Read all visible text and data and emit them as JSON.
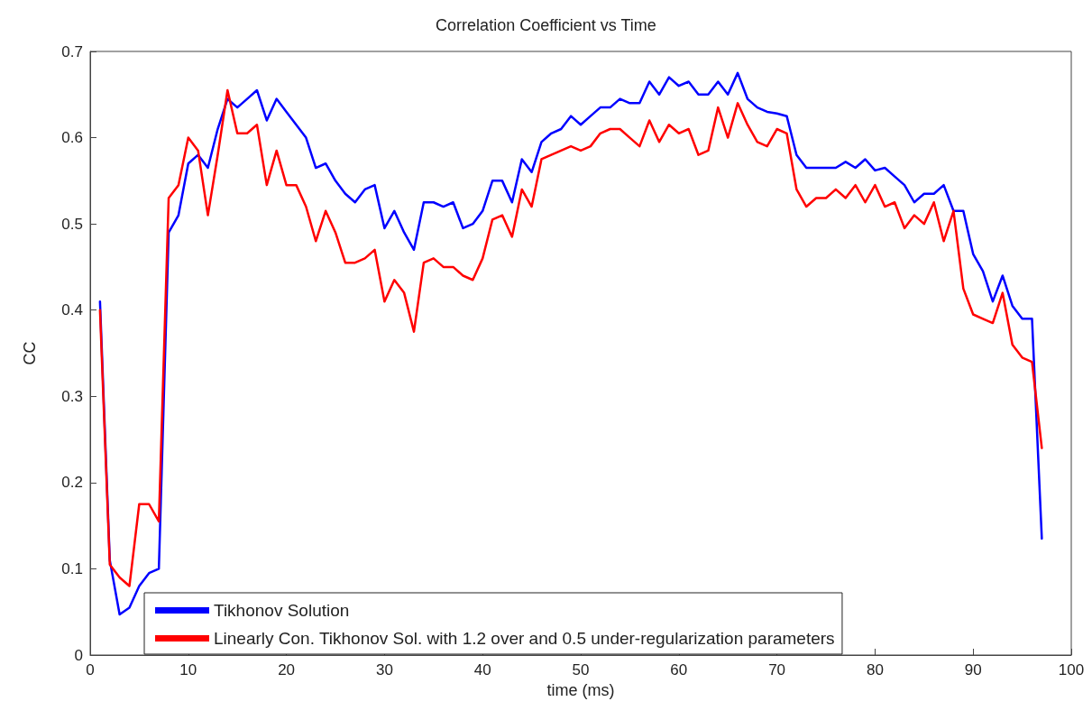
{
  "chart_data": {
    "type": "line",
    "title": "Correlation Coefficient vs Time",
    "xlabel": "time (ms)",
    "ylabel": "CC",
    "x": [
      1,
      2,
      3,
      4,
      5,
      6,
      7,
      8,
      9,
      10,
      11,
      12,
      13,
      14,
      15,
      16,
      17,
      18,
      19,
      20,
      21,
      22,
      23,
      24,
      25,
      26,
      27,
      28,
      29,
      30,
      31,
      32,
      33,
      34,
      35,
      36,
      37,
      38,
      39,
      40,
      41,
      42,
      43,
      44,
      45,
      46,
      47,
      48,
      49,
      50,
      51,
      52,
      53,
      54,
      55,
      56,
      57,
      58,
      59,
      60,
      61,
      62,
      63,
      64,
      65,
      66,
      67,
      68,
      69,
      70,
      71,
      72,
      73,
      74,
      75,
      76,
      77,
      78,
      79,
      80,
      81,
      82,
      83,
      84,
      85,
      86,
      87,
      88,
      89,
      90,
      91,
      92,
      93,
      94,
      95,
      96,
      97
    ],
    "series": [
      {
        "name": "Tikhonov Solution",
        "color": "#0000ff",
        "values": [
          0.41,
          0.11,
          0.047,
          0.055,
          0.08,
          0.095,
          0.1,
          0.49,
          0.51,
          0.57,
          0.58,
          0.565,
          0.61,
          0.645,
          0.635,
          0.645,
          0.655,
          0.62,
          0.645,
          0.63,
          0.615,
          0.6,
          0.565,
          0.57,
          0.55,
          0.535,
          0.525,
          0.54,
          0.545,
          0.495,
          0.515,
          0.49,
          0.47,
          0.525,
          0.525,
          0.52,
          0.525,
          0.495,
          0.5,
          0.515,
          0.55,
          0.55,
          0.525,
          0.575,
          0.56,
          0.595,
          0.605,
          0.61,
          0.625,
          0.615,
          0.625,
          0.635,
          0.635,
          0.645,
          0.64,
          0.64,
          0.665,
          0.65,
          0.67,
          0.66,
          0.665,
          0.65,
          0.65,
          0.665,
          0.65,
          0.675,
          0.645,
          0.635,
          0.63,
          0.628,
          0.625,
          0.58,
          0.565,
          0.565,
          0.565,
          0.565,
          0.572,
          0.565,
          0.575,
          0.562,
          0.565,
          0.555,
          0.545,
          0.525,
          0.535,
          0.535,
          0.545,
          0.515,
          0.515,
          0.465,
          0.445,
          0.41,
          0.44,
          0.405,
          0.39,
          0.39,
          0.135
        ]
      },
      {
        "name": "Linearly Con. Tikhonov Sol. with 1.2 over and 0.5 under-regularization parameters",
        "color": "#ff0000",
        "values": [
          0.4,
          0.105,
          0.09,
          0.08,
          0.175,
          0.175,
          0.155,
          0.53,
          0.545,
          0.6,
          0.585,
          0.51,
          0.58,
          0.655,
          0.605,
          0.605,
          0.615,
          0.545,
          0.585,
          0.545,
          0.545,
          0.52,
          0.48,
          0.515,
          0.49,
          0.455,
          0.455,
          0.46,
          0.47,
          0.41,
          0.435,
          0.42,
          0.375,
          0.455,
          0.46,
          0.45,
          0.45,
          0.44,
          0.435,
          0.46,
          0.505,
          0.51,
          0.485,
          0.54,
          0.52,
          0.575,
          0.58,
          0.585,
          0.59,
          0.585,
          0.59,
          0.605,
          0.61,
          0.61,
          0.6,
          0.59,
          0.62,
          0.595,
          0.615,
          0.605,
          0.61,
          0.58,
          0.585,
          0.635,
          0.6,
          0.64,
          0.615,
          0.595,
          0.59,
          0.61,
          0.605,
          0.54,
          0.52,
          0.53,
          0.53,
          0.54,
          0.53,
          0.545,
          0.525,
          0.545,
          0.52,
          0.525,
          0.495,
          0.51,
          0.5,
          0.525,
          0.48,
          0.515,
          0.425,
          0.395,
          0.39,
          0.385,
          0.42,
          0.36,
          0.345,
          0.34,
          0.24
        ]
      }
    ],
    "xlim": [
      0,
      100
    ],
    "xticks": [
      0,
      10,
      20,
      30,
      40,
      50,
      60,
      70,
      80,
      90,
      100
    ],
    "ylim": [
      0,
      0.7
    ],
    "yticks": [
      0,
      0.1,
      0.2,
      0.3,
      0.4,
      0.5,
      0.6,
      0.7
    ],
    "grid": false,
    "legend": "bottom",
    "marker": "none",
    "line_style": "solid"
  }
}
